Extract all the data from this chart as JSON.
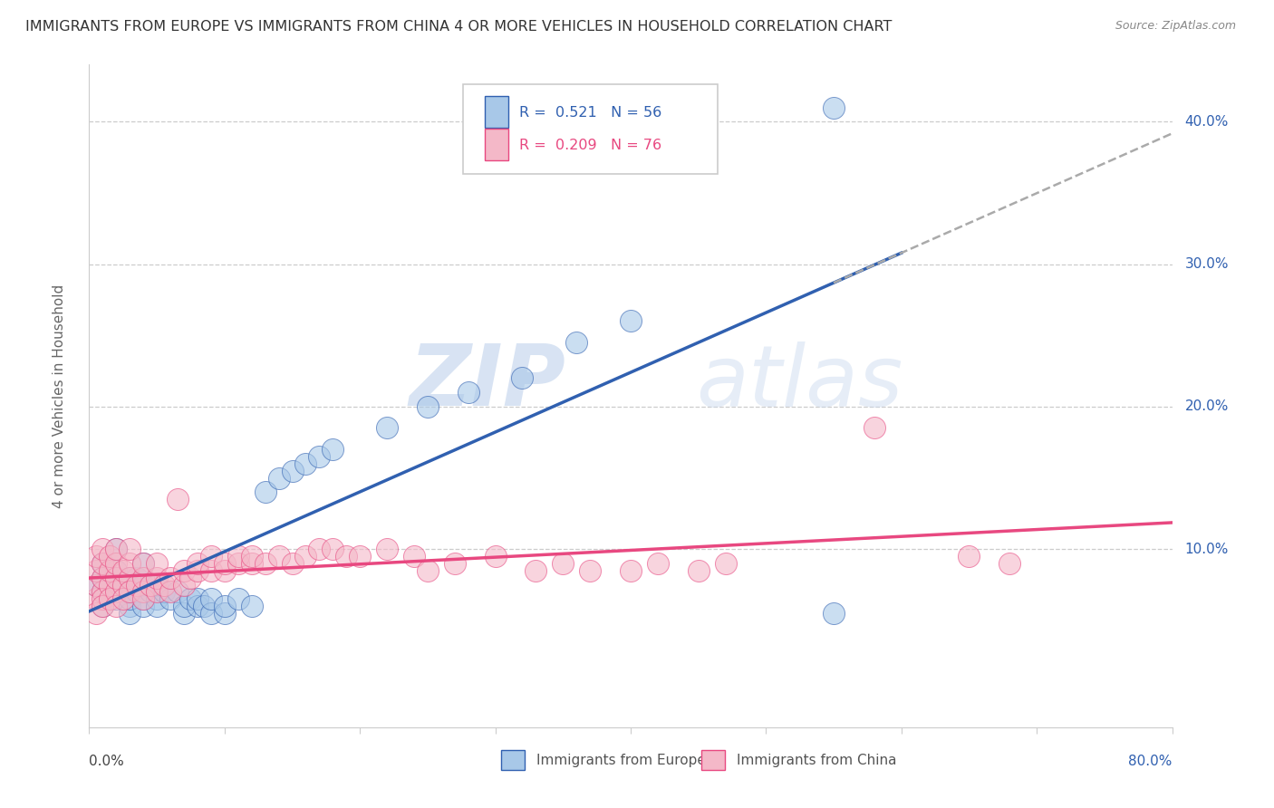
{
  "title": "IMMIGRANTS FROM EUROPE VS IMMIGRANTS FROM CHINA 4 OR MORE VEHICLES IN HOUSEHOLD CORRELATION CHART",
  "source": "Source: ZipAtlas.com",
  "ylabel": "4 or more Vehicles in Household",
  "yticks": [
    0.0,
    0.1,
    0.2,
    0.3,
    0.4
  ],
  "ytick_labels": [
    "",
    "10.0%",
    "20.0%",
    "30.0%",
    "40.0%"
  ],
  "xlim": [
    0.0,
    0.8
  ],
  "ylim": [
    -0.025,
    0.44
  ],
  "europe_R": 0.521,
  "europe_N": 56,
  "china_R": 0.209,
  "china_N": 76,
  "europe_color": "#a8c8e8",
  "china_color": "#f4b8c8",
  "europe_line_color": "#3060b0",
  "china_line_color": "#e84880",
  "europe_scatter": [
    [
      0.005,
      0.075
    ],
    [
      0.01,
      0.09
    ],
    [
      0.01,
      0.07
    ],
    [
      0.01,
      0.06
    ],
    [
      0.01,
      0.08
    ],
    [
      0.02,
      0.07
    ],
    [
      0.02,
      0.08
    ],
    [
      0.02,
      0.065
    ],
    [
      0.02,
      0.085
    ],
    [
      0.02,
      0.1
    ],
    [
      0.025,
      0.07
    ],
    [
      0.025,
      0.075
    ],
    [
      0.03,
      0.06
    ],
    [
      0.03,
      0.075
    ],
    [
      0.03,
      0.08
    ],
    [
      0.03,
      0.055
    ],
    [
      0.03,
      0.065
    ],
    [
      0.035,
      0.07
    ],
    [
      0.035,
      0.08
    ],
    [
      0.04,
      0.065
    ],
    [
      0.04,
      0.075
    ],
    [
      0.04,
      0.09
    ],
    [
      0.04,
      0.06
    ],
    [
      0.045,
      0.07
    ],
    [
      0.05,
      0.065
    ],
    [
      0.05,
      0.075
    ],
    [
      0.05,
      0.06
    ],
    [
      0.055,
      0.07
    ],
    [
      0.06,
      0.065
    ],
    [
      0.065,
      0.07
    ],
    [
      0.07,
      0.055
    ],
    [
      0.07,
      0.06
    ],
    [
      0.075,
      0.065
    ],
    [
      0.08,
      0.06
    ],
    [
      0.08,
      0.065
    ],
    [
      0.085,
      0.06
    ],
    [
      0.09,
      0.055
    ],
    [
      0.09,
      0.065
    ],
    [
      0.1,
      0.055
    ],
    [
      0.1,
      0.06
    ],
    [
      0.11,
      0.065
    ],
    [
      0.12,
      0.06
    ],
    [
      0.13,
      0.14
    ],
    [
      0.14,
      0.15
    ],
    [
      0.15,
      0.155
    ],
    [
      0.16,
      0.16
    ],
    [
      0.17,
      0.165
    ],
    [
      0.18,
      0.17
    ],
    [
      0.22,
      0.185
    ],
    [
      0.25,
      0.2
    ],
    [
      0.28,
      0.21
    ],
    [
      0.32,
      0.22
    ],
    [
      0.36,
      0.245
    ],
    [
      0.4,
      0.26
    ],
    [
      0.55,
      0.41
    ],
    [
      0.55,
      0.055
    ]
  ],
  "china_scatter": [
    [
      0.005,
      0.065
    ],
    [
      0.005,
      0.075
    ],
    [
      0.005,
      0.085
    ],
    [
      0.005,
      0.055
    ],
    [
      0.005,
      0.095
    ],
    [
      0.01,
      0.07
    ],
    [
      0.01,
      0.08
    ],
    [
      0.01,
      0.065
    ],
    [
      0.01,
      0.09
    ],
    [
      0.01,
      0.06
    ],
    [
      0.01,
      0.1
    ],
    [
      0.015,
      0.075
    ],
    [
      0.015,
      0.085
    ],
    [
      0.015,
      0.065
    ],
    [
      0.015,
      0.095
    ],
    [
      0.02,
      0.07
    ],
    [
      0.02,
      0.08
    ],
    [
      0.02,
      0.09
    ],
    [
      0.02,
      0.06
    ],
    [
      0.02,
      0.1
    ],
    [
      0.025,
      0.075
    ],
    [
      0.025,
      0.085
    ],
    [
      0.025,
      0.065
    ],
    [
      0.03,
      0.08
    ],
    [
      0.03,
      0.09
    ],
    [
      0.03,
      0.07
    ],
    [
      0.03,
      0.1
    ],
    [
      0.035,
      0.075
    ],
    [
      0.04,
      0.07
    ],
    [
      0.04,
      0.08
    ],
    [
      0.04,
      0.09
    ],
    [
      0.04,
      0.065
    ],
    [
      0.045,
      0.075
    ],
    [
      0.05,
      0.07
    ],
    [
      0.05,
      0.08
    ],
    [
      0.05,
      0.09
    ],
    [
      0.055,
      0.075
    ],
    [
      0.06,
      0.07
    ],
    [
      0.06,
      0.08
    ],
    [
      0.065,
      0.135
    ],
    [
      0.07,
      0.075
    ],
    [
      0.07,
      0.085
    ],
    [
      0.075,
      0.08
    ],
    [
      0.08,
      0.085
    ],
    [
      0.08,
      0.09
    ],
    [
      0.09,
      0.085
    ],
    [
      0.09,
      0.095
    ],
    [
      0.1,
      0.085
    ],
    [
      0.1,
      0.09
    ],
    [
      0.11,
      0.09
    ],
    [
      0.11,
      0.095
    ],
    [
      0.12,
      0.09
    ],
    [
      0.12,
      0.095
    ],
    [
      0.13,
      0.09
    ],
    [
      0.14,
      0.095
    ],
    [
      0.15,
      0.09
    ],
    [
      0.16,
      0.095
    ],
    [
      0.17,
      0.1
    ],
    [
      0.18,
      0.1
    ],
    [
      0.19,
      0.095
    ],
    [
      0.2,
      0.095
    ],
    [
      0.22,
      0.1
    ],
    [
      0.24,
      0.095
    ],
    [
      0.25,
      0.085
    ],
    [
      0.27,
      0.09
    ],
    [
      0.3,
      0.095
    ],
    [
      0.33,
      0.085
    ],
    [
      0.35,
      0.09
    ],
    [
      0.37,
      0.085
    ],
    [
      0.4,
      0.085
    ],
    [
      0.42,
      0.09
    ],
    [
      0.45,
      0.085
    ],
    [
      0.47,
      0.09
    ],
    [
      0.58,
      0.185
    ],
    [
      0.65,
      0.095
    ],
    [
      0.68,
      0.09
    ]
  ],
  "watermark_zip": "ZIP",
  "watermark_atlas": "atlas",
  "background_color": "#ffffff",
  "grid_color": "#cccccc"
}
